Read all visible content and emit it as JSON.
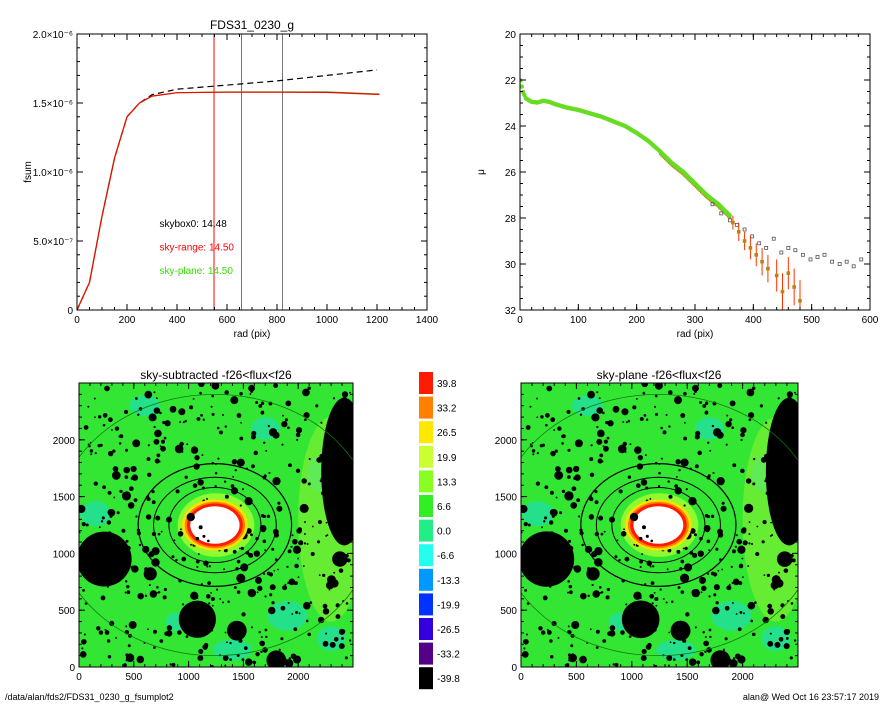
{
  "chart_data": [
    {
      "id": "fsum",
      "type": "line",
      "title": "FDS31_0230_g",
      "xlabel": "rad (pix)",
      "ylabel": "fsum",
      "xlim": [
        0,
        1400
      ],
      "ylim": [
        0,
        2e-06
      ],
      "x_ticks": [
        "0",
        "200",
        "400",
        "600",
        "800",
        "1000",
        "1200",
        "1400"
      ],
      "y_ticks": [
        "0",
        "5.0×10⁻⁷",
        "1.0×10⁻⁶",
        "1.5×10⁻⁶",
        "2.0×10⁻⁶"
      ],
      "series": [
        {
          "color": "#000000",
          "dash": true,
          "x": [
            0,
            50,
            100,
            150,
            200,
            250,
            300,
            400,
            600,
            800,
            1000,
            1200
          ],
          "y": [
            0,
            2e-07,
            6.8e-07,
            1.1e-06,
            1.4e-06,
            1.5e-06,
            1.56e-06,
            1.6e-06,
            1.63e-06,
            1.66e-06,
            1.7e-06,
            1.74e-06
          ]
        },
        {
          "color": "#00d000",
          "x": [
            0,
            50,
            100,
            150,
            200,
            250,
            300,
            400,
            600,
            800,
            1000,
            1200,
            1210
          ],
          "y": [
            0,
            2e-07,
            6.8e-07,
            1.1e-06,
            1.4e-06,
            1.5e-06,
            1.55e-06,
            1.575e-06,
            1.58e-06,
            1.58e-06,
            1.58e-06,
            1.565e-06,
            1.565e-06
          ]
        },
        {
          "color": "#ff0000",
          "x": [
            0,
            50,
            100,
            150,
            200,
            250,
            300,
            400,
            600,
            800,
            1000,
            1200,
            1210
          ],
          "y": [
            0,
            2e-07,
            6.8e-07,
            1.1e-06,
            1.4e-06,
            1.5e-06,
            1.55e-06,
            1.575e-06,
            1.578e-06,
            1.578e-06,
            1.577e-06,
            1.562e-06,
            1.562e-06
          ]
        }
      ],
      "vlines": [
        {
          "x": 548,
          "color": "#ff0000"
        },
        {
          "x": 658,
          "color": "#777777"
        },
        {
          "x": 822,
          "color": "#777777"
        }
      ],
      "annotations": [
        {
          "text": "skybox0: 14.48",
          "color": "#000000",
          "x": 330,
          "y": 6e-07
        },
        {
          "text": "sky-range: 14.50",
          "color": "#ff0000",
          "x": 330,
          "y": 4.3e-07
        },
        {
          "text": "sky-plane: 14.50",
          "color": "#33dd00",
          "x": 330,
          "y": 2.6e-07
        }
      ]
    },
    {
      "id": "mu",
      "type": "scatter",
      "xlabel": "rad (pix)",
      "ylabel": "μ",
      "xlim": [
        0,
        600
      ],
      "ylim": [
        32,
        20
      ],
      "inverted_y": true,
      "x_ticks": [
        "0",
        "100",
        "200",
        "300",
        "400",
        "500",
        "600"
      ],
      "y_ticks": [
        "20",
        "22",
        "24",
        "26",
        "28",
        "30",
        "32"
      ],
      "profile": {
        "x": [
          0,
          5,
          10,
          20,
          30,
          40,
          50,
          60,
          80,
          100,
          120,
          140,
          160,
          180,
          200,
          220,
          240,
          260,
          280,
          300,
          320,
          340,
          360
        ],
        "y": [
          21.9,
          22.5,
          22.8,
          22.95,
          22.98,
          22.9,
          22.95,
          23.05,
          23.2,
          23.3,
          23.45,
          23.6,
          23.8,
          24.0,
          24.3,
          24.65,
          25.1,
          25.6,
          26.0,
          26.5,
          27.0,
          27.4,
          27.9
        ]
      },
      "sky_points": {
        "x": [
          330,
          345,
          360,
          372,
          385,
          398,
          410,
          422,
          435,
          448,
          460,
          472,
          485,
          498,
          510,
          522,
          535,
          548,
          560,
          572,
          585
        ],
        "y": [
          27.4,
          27.8,
          28.1,
          28.3,
          28.5,
          28.8,
          29.1,
          29.3,
          28.9,
          29.5,
          29.3,
          29.4,
          29.6,
          29.8,
          29.7,
          29.6,
          29.9,
          30.0,
          29.9,
          30.1,
          29.8
        ]
      },
      "error_points": {
        "x": [
          365,
          375,
          385,
          395,
          405,
          415,
          425,
          440,
          450,
          460,
          470,
          480
        ],
        "y": [
          28.2,
          28.6,
          29.0,
          29.3,
          29.6,
          29.9,
          30.2,
          30.5,
          31.2,
          30.4,
          31.0,
          31.6
        ],
        "err": [
          0.3,
          0.4,
          0.4,
          0.5,
          0.5,
          0.6,
          0.6,
          0.7,
          0.8,
          0.7,
          0.8,
          0.9
        ]
      }
    },
    {
      "id": "img-left",
      "type": "heatmap",
      "title": "sky-subtracted -f26<flux<f26",
      "xlim": [
        0,
        2500
      ],
      "ylim": [
        0,
        2500
      ],
      "x_ticks": [
        "0",
        "500",
        "1000",
        "1500",
        "2000"
      ],
      "y_ticks": [
        "0",
        "500",
        "1000",
        "1500",
        "2000"
      ]
    },
    {
      "id": "img-right",
      "type": "heatmap",
      "title": "sky-plane -f26<flux<f26",
      "xlim": [
        0,
        2500
      ],
      "ylim": [
        0,
        2500
      ],
      "x_ticks": [
        "0",
        "500",
        "1000",
        "1500",
        "2000"
      ],
      "y_ticks": [
        "0",
        "500",
        "1000",
        "1500",
        "2000"
      ]
    }
  ],
  "colorbar": [
    {
      "value": "39.8",
      "color": "#ff1a00"
    },
    {
      "value": "33.2",
      "color": "#ff8000"
    },
    {
      "value": "26.5",
      "color": "#ffe800"
    },
    {
      "value": "19.9",
      "color": "#ccff33"
    },
    {
      "value": "13.3",
      "color": "#88ff22"
    },
    {
      "value": "6.6",
      "color": "#33ee22"
    },
    {
      "value": "0.0",
      "color": "#22ee88"
    },
    {
      "value": "-6.6",
      "color": "#22ffee"
    },
    {
      "value": "-13.3",
      "color": "#0099ff"
    },
    {
      "value": "-19.9",
      "color": "#0033ff"
    },
    {
      "value": "-26.5",
      "color": "#3300dd"
    },
    {
      "value": "-33.2",
      "color": "#550088"
    },
    {
      "value": "-39.8",
      "color": "#000000"
    }
  ],
  "footer": {
    "left": "/data/alan/fds2/FDS31_0230_g_fsumplot2",
    "right": "alan@  Wed Oct 16 23:57:17 2019"
  }
}
